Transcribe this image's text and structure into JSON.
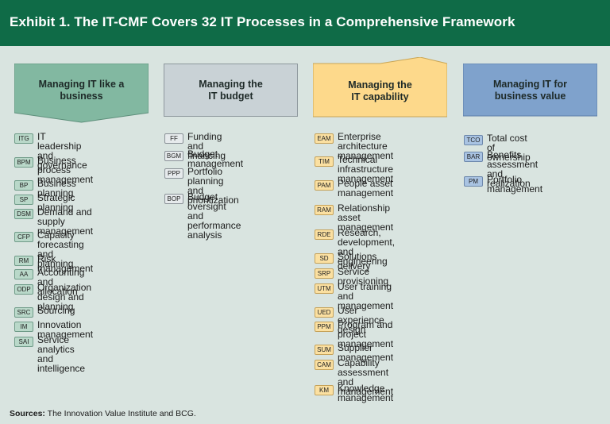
{
  "header": {
    "title": "Exhibit 1. The IT-CMF Covers 32 IT Processes in a Comprehensive Framework"
  },
  "colors": {
    "header_bg": "#0f6b47",
    "col1": "#82b8a1",
    "col2": "#c9d2d6",
    "col3": "#fdd98b",
    "col4": "#7fa2cc"
  },
  "columns": [
    {
      "title": "Managing IT like a\nbusiness",
      "items": [
        {
          "code": "ITG",
          "label": "IT leadership and\ngovernance"
        },
        {
          "code": "BPM",
          "label": "Business process\nmanagement"
        },
        {
          "code": "BP",
          "label": "Business planning"
        },
        {
          "code": "SP",
          "label": "Strategic planning"
        },
        {
          "code": "DSM",
          "label": "Demand and supply\nmanagement"
        },
        {
          "code": "CFP",
          "label": "Capacity forecasting\nand planning"
        },
        {
          "code": "RM",
          "label": "Risk management"
        },
        {
          "code": "AA",
          "label": "Accounting and allocation"
        },
        {
          "code": "ODP",
          "label": "Organization design and\nplanning"
        },
        {
          "code": "SRC",
          "label": "Sourcing"
        },
        {
          "code": "IM",
          "label": "Innovation management"
        },
        {
          "code": "SAI",
          "label": "Service analytics and\nintelligence"
        }
      ]
    },
    {
      "title": "Managing the\nIT budget",
      "items": [
        {
          "code": "FF",
          "label": "Funding and financing"
        },
        {
          "code": "BGM",
          "label": "Budget management"
        },
        {
          "code": "PPP",
          "label": "Portfolio planning and\nprioritization"
        },
        {
          "code": "BOP",
          "label": "Budget oversight and\nperformance analysis"
        }
      ]
    },
    {
      "title": "Managing the\nIT capability",
      "items": [
        {
          "code": "EAM",
          "label": "Enterprise architecture\nmanagement"
        },
        {
          "code": "TIM",
          "label": "Technical infrastructure\nmanagement"
        },
        {
          "code": "PAM",
          "label": "People asset\nmanagement"
        },
        {
          "code": "RAM",
          "label": "Relationship asset\nmanagement"
        },
        {
          "code": "RDE",
          "label": "Research, development,\nand engineering"
        },
        {
          "code": "SD",
          "label": "Solutions delivery"
        },
        {
          "code": "SRP",
          "label": "Service provisioning"
        },
        {
          "code": "UTM",
          "label": "User training and\nmanagement"
        },
        {
          "code": "UED",
          "label": "User experience design"
        },
        {
          "code": "PPM",
          "label": "Program and project\nmanagement"
        },
        {
          "code": "SUM",
          "label": "Supplier management"
        },
        {
          "code": "CAM",
          "label": "Capability assessment\nand management"
        },
        {
          "code": "KM",
          "label": "Knowledge management"
        }
      ]
    },
    {
      "title": "Managing IT for\nbusiness value",
      "items": [
        {
          "code": "TCO",
          "label": "Total cost of ownership"
        },
        {
          "code": "BAR",
          "label": "Benefits assessment\nand realization"
        },
        {
          "code": "PM",
          "label": "Portfolio management"
        }
      ]
    }
  ],
  "sources": {
    "label": "Sources:",
    "text": "The Innovation Value Institute and BCG."
  }
}
